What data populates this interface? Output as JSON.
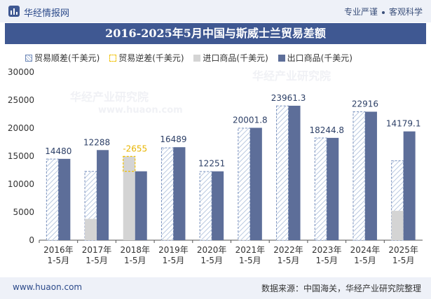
{
  "header": {
    "brand": "华经情报网",
    "tag1": "专业严谨",
    "tag2": "客观科学"
  },
  "title": "2016-2025年5月中国与斯威士兰贸易差额",
  "legend": [
    "贸易顺差(千美元)",
    "贸易逆差(千美元)",
    "进口商品(千美元)",
    "出口商品(千美元)"
  ],
  "footer": {
    "site": "www.huaon.com",
    "source": "数据来源：中国海关，华经产业研究院整理"
  },
  "watermark": {
    "text": "华经产业研究院",
    "url": "www.huaon.com"
  },
  "colors": {
    "export": "#5d6e99",
    "import": "#d4d4d4",
    "surplus_stroke": "#6e88b8",
    "deficit": "#f0c000",
    "title_bg": "#3f5892"
  },
  "chart_data": {
    "type": "bar",
    "categories": [
      "2016年\n1-5月",
      "2017年\n1-5月",
      "2018年\n1-5月",
      "2019年\n1-5月",
      "2020年\n1-5月",
      "2021年\n1-5月",
      "2022年\n1-5月",
      "2023年\n1-5月",
      "2024年\n1-5月",
      "2025年\n1-5月"
    ],
    "ylim": [
      0,
      30000
    ],
    "yticks": [
      0,
      5000,
      10000,
      15000,
      20000,
      25000,
      30000
    ],
    "balance_labels": [
      "14480",
      "12288",
      "-2655",
      "16489",
      "12251",
      "20001.8",
      "23961.3",
      "18244.8",
      "22916",
      "14179.1"
    ],
    "series": [
      {
        "name": "贸易顺差(千美元)",
        "values": [
          14480,
          12288,
          0,
          16489,
          12251,
          20001.8,
          23961.3,
          18244.8,
          22916,
          14179.1
        ]
      },
      {
        "name": "贸易逆差(千美元)",
        "values": [
          0,
          0,
          2655,
          0,
          0,
          0,
          0,
          0,
          0,
          0
        ]
      },
      {
        "name": "进口商品(千美元)",
        "values": [
          40,
          3800,
          14950,
          110,
          40,
          60,
          40,
          20,
          20,
          5240
        ]
      },
      {
        "name": "出口商品(千美元)",
        "values": [
          14520,
          16088,
          12295,
          16599,
          12291,
          20061.8,
          24001.3,
          18264.8,
          22936,
          19419.1
        ]
      }
    ]
  }
}
